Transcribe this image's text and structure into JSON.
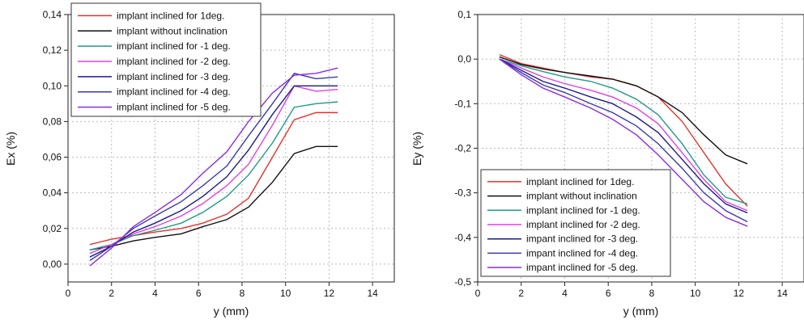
{
  "chart_data": [
    {
      "type": "line",
      "title": "",
      "xlabel": "y (mm)",
      "ylabel": "Ex (%)",
      "xlim": [
        0,
        15
      ],
      "ylim": [
        -0.01,
        0.14
      ],
      "x_ticks": [
        0,
        2,
        4,
        6,
        8,
        10,
        12,
        14
      ],
      "y_ticks": [
        0.0,
        0.02,
        0.04,
        0.06,
        0.08,
        0.1,
        0.12,
        0.14
      ],
      "y_tick_labels": [
        "0,00",
        "0,02",
        "0,04",
        "0,06",
        "0,08",
        "0,10",
        "0,12",
        "0,14"
      ],
      "grid": "dashed",
      "legend_position": "top-left",
      "x": [
        1,
        2,
        3,
        4,
        5.2,
        6.2,
        7.3,
        8.3,
        9.4,
        10.4,
        11.4,
        12.4
      ],
      "series": [
        {
          "name": "implant inclined for 1deg.",
          "color": "#e8302a",
          "values": [
            0.011,
            0.014,
            0.016,
            0.018,
            0.02,
            0.023,
            0.028,
            0.037,
            0.06,
            0.081,
            0.085,
            0.085
          ]
        },
        {
          "name": "implant without inclination",
          "color": "#111111",
          "values": [
            0.008,
            0.01,
            0.013,
            0.015,
            0.017,
            0.021,
            0.025,
            0.032,
            0.046,
            0.062,
            0.066,
            0.066
          ]
        },
        {
          "name": "implant inclined for -1 deg.",
          "color": "#1f9a8a",
          "values": [
            0.008,
            0.011,
            0.016,
            0.019,
            0.023,
            0.029,
            0.038,
            0.05,
            0.068,
            0.088,
            0.09,
            0.091
          ]
        },
        {
          "name": "implant inclined for -2 deg.",
          "color": "#e040e0",
          "values": [
            0.006,
            0.011,
            0.017,
            0.021,
            0.027,
            0.034,
            0.044,
            0.056,
            0.078,
            0.1,
            0.097,
            0.098
          ]
        },
        {
          "name": "implant inclined for -3 deg.",
          "color": "#1a1a8c",
          "values": [
            0.004,
            0.01,
            0.018,
            0.023,
            0.03,
            0.038,
            0.049,
            0.064,
            0.084,
            0.1,
            0.1,
            0.1
          ]
        },
        {
          "name": "implant inclined for -4 deg.",
          "color": "#3a3ab0",
          "values": [
            0.002,
            0.01,
            0.02,
            0.027,
            0.035,
            0.044,
            0.055,
            0.072,
            0.09,
            0.107,
            0.104,
            0.105
          ]
        },
        {
          "name": "implant inclined for -5 deg.",
          "color": "#8a2be2",
          "values": [
            -0.001,
            0.009,
            0.021,
            0.029,
            0.039,
            0.051,
            0.063,
            0.08,
            0.096,
            0.106,
            0.107,
            0.11
          ]
        }
      ]
    },
    {
      "type": "line",
      "title": "",
      "xlabel": "y (mm)",
      "ylabel": "Ey (%)",
      "xlim": [
        0,
        15
      ],
      "ylim": [
        -0.5,
        0.1
      ],
      "x_ticks": [
        0,
        2,
        4,
        6,
        8,
        10,
        12,
        14
      ],
      "y_ticks": [
        0.1,
        0.0,
        -0.1,
        -0.2,
        -0.3,
        -0.4,
        -0.5
      ],
      "y_tick_labels": [
        "0,1",
        "0,0",
        "-0,1",
        "-0,2",
        "-0,3",
        "-0,4",
        "-0,5"
      ],
      "grid": "dashed",
      "legend_position": "bottom-left",
      "x": [
        1,
        2,
        3,
        4,
        5.2,
        6.2,
        7.3,
        8.3,
        9.4,
        10.4,
        11.4,
        12.4
      ],
      "series": [
        {
          "name": "implant inclined for 1deg.",
          "color": "#e8302a",
          "values": [
            0.01,
            -0.01,
            -0.02,
            -0.03,
            -0.04,
            -0.045,
            -0.06,
            -0.085,
            -0.14,
            -0.21,
            -0.28,
            -0.33
          ]
        },
        {
          "name": "implant without inclination",
          "color": "#111111",
          "values": [
            0.005,
            -0.012,
            -0.022,
            -0.03,
            -0.038,
            -0.045,
            -0.06,
            -0.085,
            -0.12,
            -0.17,
            -0.215,
            -0.235
          ]
        },
        {
          "name": "implant inclined for -1 deg.",
          "color": "#1f9a8a",
          "values": [
            0.0,
            -0.015,
            -0.028,
            -0.04,
            -0.05,
            -0.065,
            -0.09,
            -0.125,
            -0.19,
            -0.26,
            -0.31,
            -0.325
          ]
        },
        {
          "name": "implant inclined for -2 deg.",
          "color": "#e040e0",
          "values": [
            0.0,
            -0.02,
            -0.04,
            -0.055,
            -0.07,
            -0.085,
            -0.11,
            -0.145,
            -0.21,
            -0.27,
            -0.32,
            -0.34
          ]
        },
        {
          "name": "impant inclined for -3 deg.",
          "color": "#1a1a8c",
          "values": [
            0.0,
            -0.025,
            -0.05,
            -0.065,
            -0.085,
            -0.1,
            -0.13,
            -0.165,
            -0.225,
            -0.28,
            -0.325,
            -0.345
          ]
        },
        {
          "name": "impant inclined for -4 deg.",
          "color": "#3a3ab0",
          "values": [
            0.0,
            -0.03,
            -0.058,
            -0.075,
            -0.1,
            -0.12,
            -0.15,
            -0.19,
            -0.245,
            -0.3,
            -0.34,
            -0.365
          ]
        },
        {
          "name": "impant inclined for -5 deg.",
          "color": "#8a2be2",
          "values": [
            0.0,
            -0.035,
            -0.065,
            -0.085,
            -0.11,
            -0.135,
            -0.17,
            -0.215,
            -0.27,
            -0.32,
            -0.355,
            -0.375
          ]
        }
      ]
    }
  ]
}
